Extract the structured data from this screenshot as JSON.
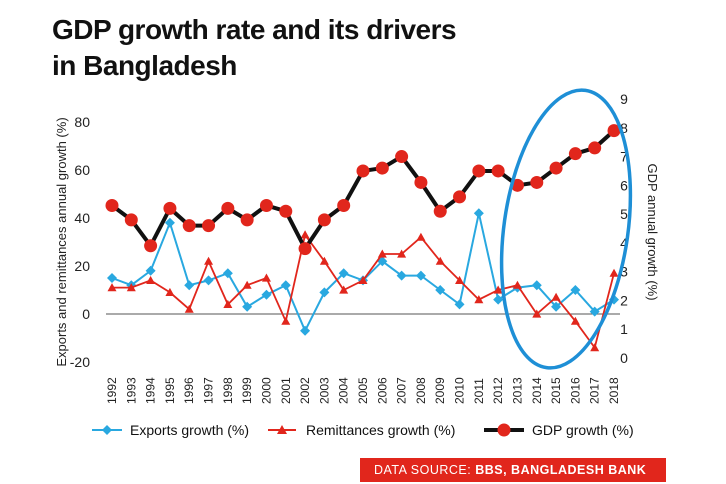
{
  "title_line1": "GDP growth rate and its drivers",
  "title_line2": "in Bangladesh",
  "source_label": "DATA SOURCE:",
  "source_value": "BBS, BANGLADESH BANK",
  "colors": {
    "exports": "#29a8e0",
    "remittances": "#e1261c",
    "gdp_line": "#111111",
    "gdp_marker": "#e1261c",
    "highlight_ellipse": "#1e8fd6",
    "source_bar": "#e1261c"
  },
  "chart_data": {
    "type": "line",
    "title": "GDP growth rate and its drivers in Bangladesh",
    "categories": [
      "1992",
      "1993",
      "1994",
      "1995",
      "1996",
      "1997",
      "1998",
      "1999",
      "2000",
      "2001",
      "2002",
      "2003",
      "2004",
      "2005",
      "2006",
      "2007",
      "2008",
      "2009",
      "2010",
      "2011",
      "2012",
      "2013",
      "2014",
      "2015",
      "2016",
      "2017",
      "2018"
    ],
    "ylabel_left": "Exports and remittances annual growth (%)",
    "ylabel_right": "GDP annual growth (%)",
    "ylim_left": [
      -20,
      80
    ],
    "yticks_left": [
      "80",
      "60",
      "40",
      "20",
      "0",
      "-20"
    ],
    "ylim_right": [
      0,
      9
    ],
    "yticks_right": [
      "9",
      "8",
      "7",
      "6",
      "5",
      "4",
      "3",
      "2",
      "1",
      "0"
    ],
    "series": [
      {
        "name": "Exports growth (%)",
        "axis": "left",
        "marker": "diamond",
        "values": [
          15,
          12,
          18,
          38,
          12,
          14,
          17,
          3,
          8,
          12,
          -7,
          9,
          17,
          14,
          22,
          16,
          16,
          10,
          4,
          42,
          6,
          11,
          12,
          3,
          10,
          1,
          6
        ]
      },
      {
        "name": "Remittances growth (%)",
        "axis": "left",
        "marker": "triangle",
        "values": [
          11,
          11,
          14,
          9,
          2,
          22,
          4,
          12,
          15,
          -3,
          33,
          22,
          10,
          14,
          25,
          25,
          32,
          22,
          14,
          6,
          10,
          12,
          0,
          7,
          -3,
          -14,
          17
        ]
      },
      {
        "name": "GDP growth (%)",
        "axis": "right",
        "marker": "circle",
        "values": [
          5.3,
          4.8,
          3.9,
          5.2,
          4.6,
          4.6,
          5.2,
          4.8,
          5.3,
          5.1,
          3.8,
          4.8,
          5.3,
          6.5,
          6.6,
          7.0,
          6.1,
          5.1,
          5.6,
          6.5,
          6.5,
          6.0,
          6.1,
          6.6,
          7.1,
          7.3,
          7.9
        ]
      }
    ],
    "legend": [
      {
        "label": "Exports growth (%)",
        "marker": "diamond"
      },
      {
        "label": "Remittances growth (%)",
        "marker": "triangle"
      },
      {
        "label": "GDP growth (%)",
        "marker": "circle"
      }
    ],
    "legend_position": "bottom",
    "annotation": "ellipse highlighting 2012-2017"
  }
}
